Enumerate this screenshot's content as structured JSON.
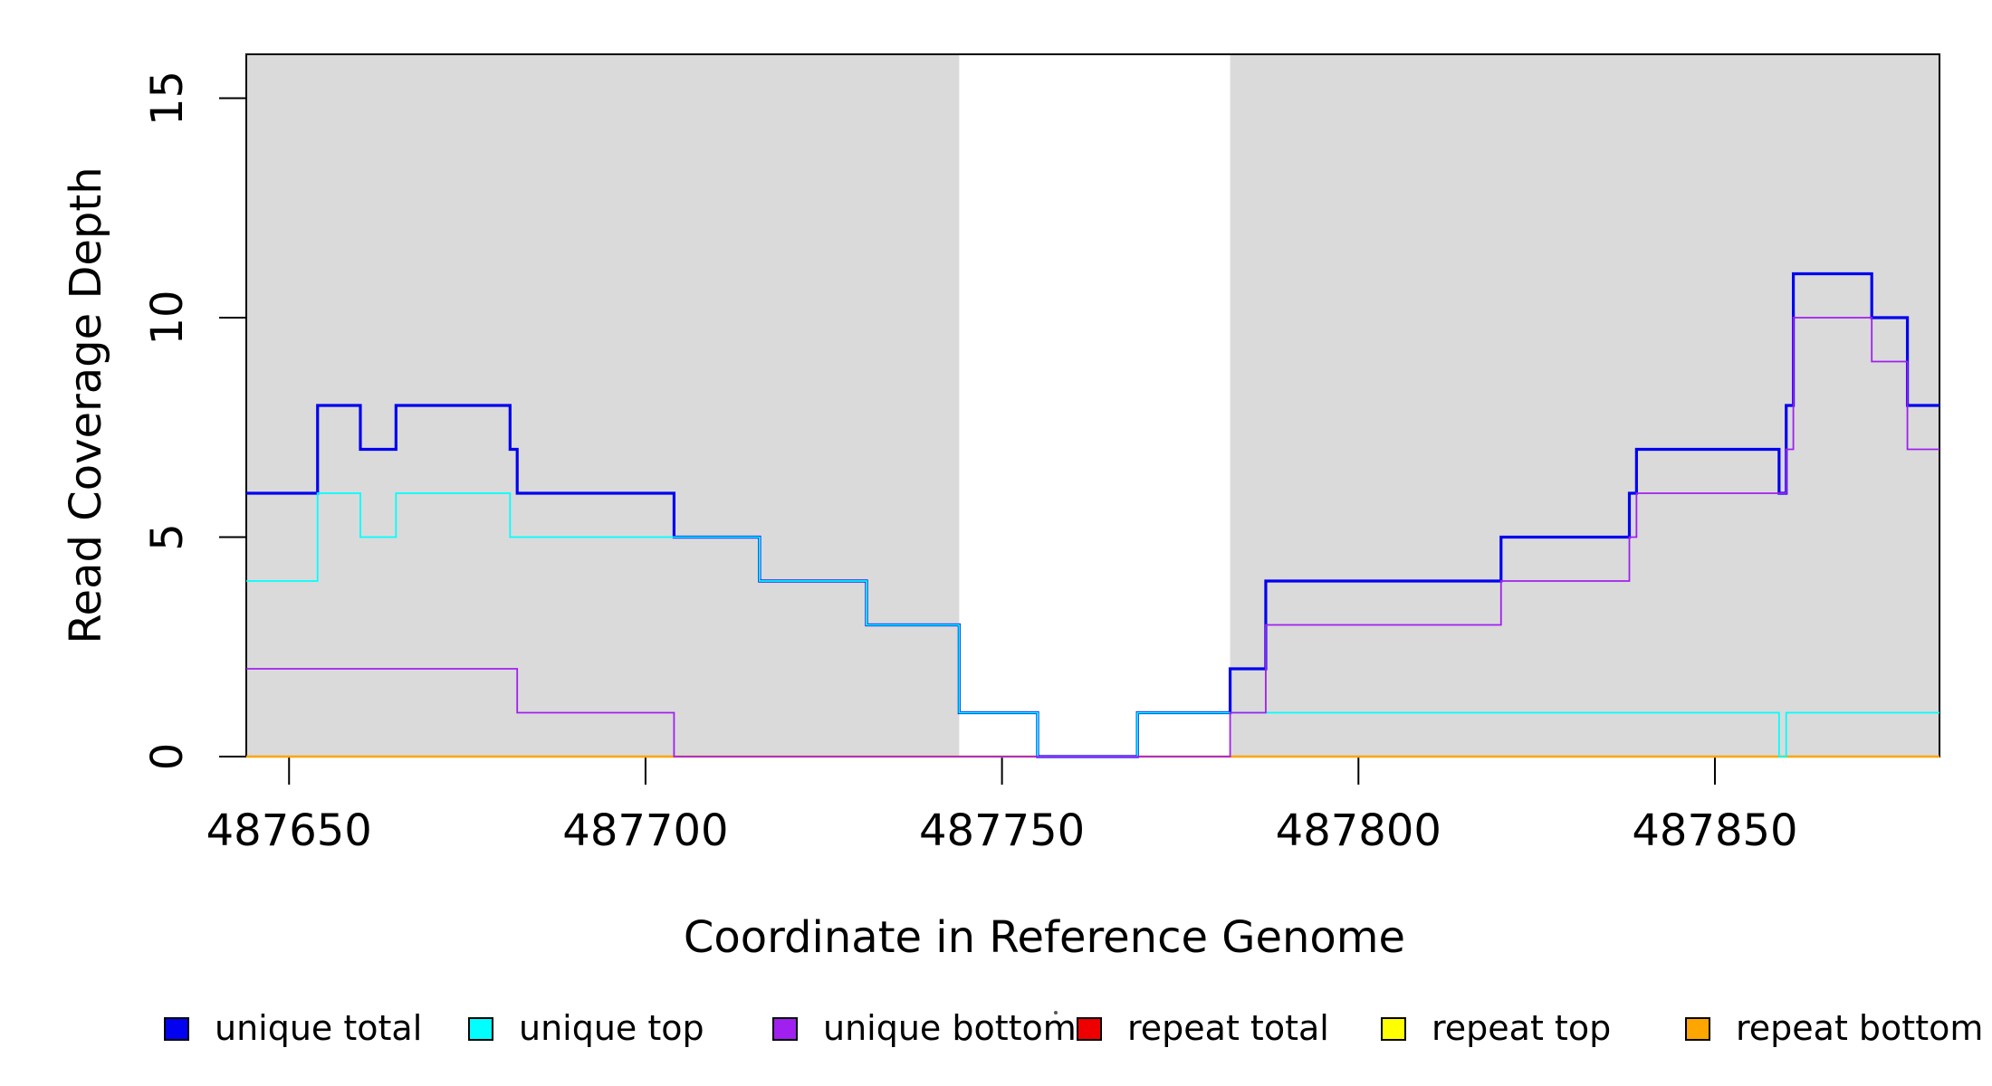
{
  "chart_data": {
    "type": "line",
    "subtype": "step-coverage",
    "xlabel": "Coordinate in Reference Genome",
    "ylabel": "Read Coverage Depth",
    "xlim": [
      487644,
      487881.5
    ],
    "ylim": [
      0,
      16
    ],
    "x_ticks": [
      487650,
      487700,
      487750,
      487800,
      487850
    ],
    "x_tick_labels": [
      "487650",
      "487700",
      "487750",
      "487800",
      "487850"
    ],
    "y_ticks": [
      0,
      5,
      10,
      15
    ],
    "y_tick_labels": [
      "0",
      "5",
      "10",
      "15"
    ],
    "grid": false,
    "background_color": "#ffffff",
    "shade_color": "#dadada",
    "frame_color": "#000000",
    "shaded_regions": [
      [
        487644,
        487744
      ],
      [
        487782,
        487881.5
      ]
    ],
    "legend_position": "bottom",
    "draw_order": [
      3,
      4,
      5,
      0,
      1,
      2
    ],
    "series": [
      {
        "name": "unique-total",
        "label": "unique total",
        "color": "#0202f0",
        "width": 3.2,
        "steps": [
          [
            487644,
            6
          ],
          [
            487654,
            8
          ],
          [
            487660,
            7
          ],
          [
            487665,
            8
          ],
          [
            487681,
            7
          ],
          [
            487682,
            6
          ],
          [
            487704,
            5
          ],
          [
            487716,
            4
          ],
          [
            487731,
            3
          ],
          [
            487744,
            1
          ],
          [
            487755,
            0
          ],
          [
            487769,
            1
          ],
          [
            487782,
            2
          ],
          [
            487787,
            4
          ],
          [
            487820,
            5
          ],
          [
            487838,
            6
          ],
          [
            487839,
            7
          ],
          [
            487859,
            6
          ],
          [
            487860,
            8
          ],
          [
            487861,
            11
          ],
          [
            487872,
            10
          ],
          [
            487877,
            8
          ]
        ]
      },
      {
        "name": "unique-top",
        "label": "unique top",
        "color": "#00ffff",
        "width": 1.8,
        "steps": [
          [
            487644,
            4
          ],
          [
            487654,
            6
          ],
          [
            487660,
            5
          ],
          [
            487665,
            6
          ],
          [
            487681,
            5
          ],
          [
            487716,
            4
          ],
          [
            487731,
            3
          ],
          [
            487744,
            1
          ],
          [
            487755,
            0
          ],
          [
            487769,
            1
          ],
          [
            487859,
            0
          ],
          [
            487860,
            1
          ]
        ]
      },
      {
        "name": "unique-bottom",
        "label": "unique bottom",
        "color": "#a020f0",
        "width": 1.8,
        "steps": [
          [
            487644,
            2
          ],
          [
            487682,
            1
          ],
          [
            487704,
            0
          ],
          [
            487782,
            1
          ],
          [
            487787,
            3
          ],
          [
            487820,
            4
          ],
          [
            487838,
            5
          ],
          [
            487839,
            6
          ],
          [
            487860,
            7
          ],
          [
            487861,
            10
          ],
          [
            487872,
            9
          ],
          [
            487877,
            7
          ]
        ]
      },
      {
        "name": "repeat-total",
        "label": "repeat total",
        "color": "#ee0000",
        "width": 2,
        "steps": [
          [
            487644,
            0
          ]
        ]
      },
      {
        "name": "repeat-top",
        "label": "repeat top",
        "color": "#ffff00",
        "width": 2,
        "steps": [
          [
            487644,
            0
          ]
        ]
      },
      {
        "name": "repeat-bottom",
        "label": "repeat bottom",
        "color": "#ffa500",
        "width": 2.4,
        "steps": [
          [
            487644,
            0
          ]
        ]
      }
    ]
  }
}
